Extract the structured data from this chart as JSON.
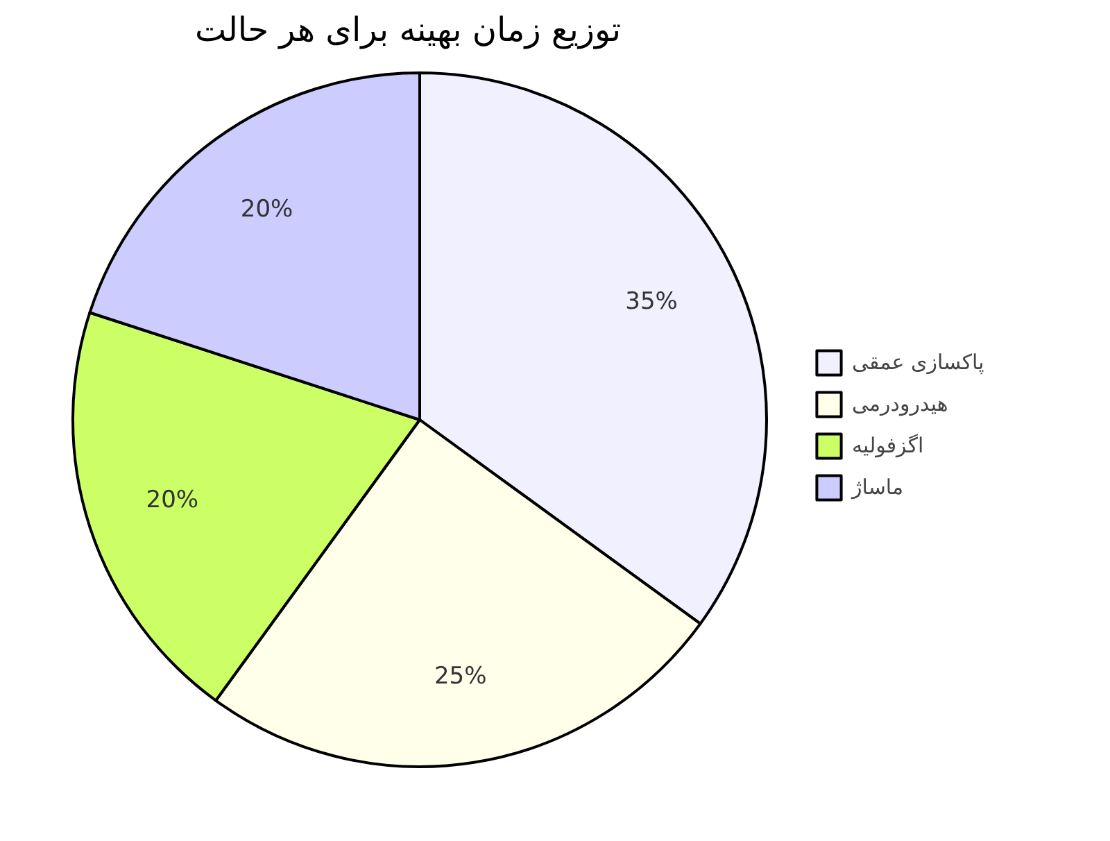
{
  "chart_data": {
    "type": "pie",
    "title": "توزیع زمان بهینه برای هر حالت",
    "categories": [
      "پاکسازی عمقی",
      "هیدرودرمی",
      "اگزفولیه",
      "ماساژ"
    ],
    "values": [
      35,
      25,
      20,
      20
    ],
    "colors": [
      "#f0f0fe",
      "#ffffea",
      "#ccff66",
      "#ccccff"
    ],
    "value_labels": [
      "35%",
      "25%",
      "20%",
      "20%"
    ],
    "legend": "right"
  }
}
